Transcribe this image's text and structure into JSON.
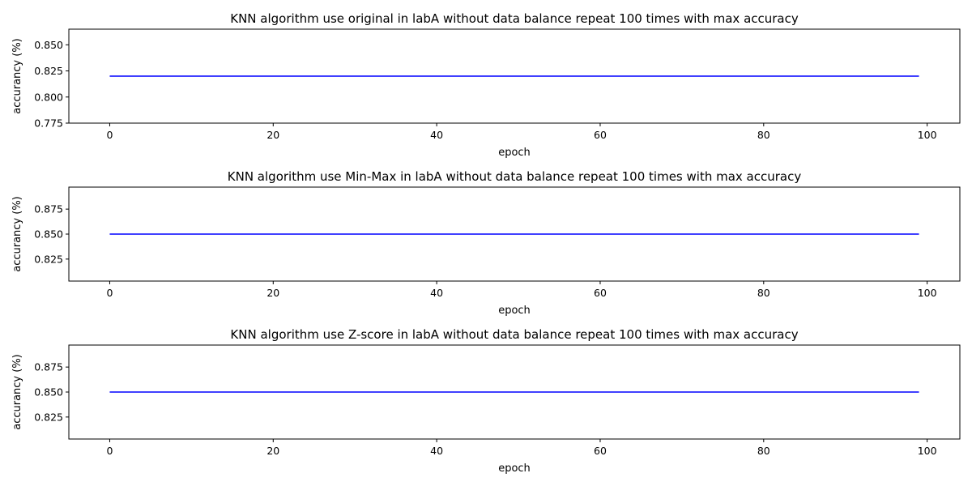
{
  "colors": {
    "line": "#0000ff",
    "axis": "#000000",
    "background": "#ffffff"
  },
  "chart_data": [
    {
      "type": "line",
      "title": "KNN algorithm use original in labA without data balance repeat 100 times with max accuracy",
      "xlabel": "epoch",
      "ylabel": "accurancy (%)",
      "xlim": [
        -5,
        104
      ],
      "ylim": [
        0.775,
        0.865
      ],
      "xticks": [
        0,
        20,
        40,
        60,
        80,
        100
      ],
      "xtick_labels": [
        "0",
        "20",
        "40",
        "60",
        "80",
        "100"
      ],
      "yticks": [
        0.775,
        0.8,
        0.825,
        0.85
      ],
      "ytick_labels": [
        "0.775",
        "0.800",
        "0.825",
        "0.850"
      ],
      "grid": false,
      "series": [
        {
          "x": [
            0,
            99
          ],
          "y": [
            0.82,
            0.82
          ]
        }
      ]
    },
    {
      "type": "line",
      "title": "KNN algorithm use Min-Max in labA without data balance repeat 100 times with max accuracy",
      "xlabel": "epoch",
      "ylabel": "accurancy (%)",
      "xlim": [
        -5,
        104
      ],
      "ylim": [
        0.803,
        0.897
      ],
      "xticks": [
        0,
        20,
        40,
        60,
        80,
        100
      ],
      "xtick_labels": [
        "0",
        "20",
        "40",
        "60",
        "80",
        "100"
      ],
      "yticks": [
        0.825,
        0.85,
        0.875
      ],
      "ytick_labels": [
        "0.825",
        "0.850",
        "0.875"
      ],
      "grid": false,
      "series": [
        {
          "x": [
            0,
            99
          ],
          "y": [
            0.85,
            0.85
          ]
        }
      ]
    },
    {
      "type": "line",
      "title": "KNN algorithm use Z-score in labA without data balance repeat 100 times with max accuracy",
      "xlabel": "epoch",
      "ylabel": "accurancy (%)",
      "xlim": [
        -5,
        104
      ],
      "ylim": [
        0.803,
        0.897
      ],
      "xticks": [
        0,
        20,
        40,
        60,
        80,
        100
      ],
      "xtick_labels": [
        "0",
        "20",
        "40",
        "60",
        "80",
        "100"
      ],
      "yticks": [
        0.825,
        0.85,
        0.875
      ],
      "ytick_labels": [
        "0.825",
        "0.850",
        "0.875"
      ],
      "grid": false,
      "series": [
        {
          "x": [
            0,
            99
          ],
          "y": [
            0.85,
            0.85
          ]
        }
      ]
    }
  ]
}
